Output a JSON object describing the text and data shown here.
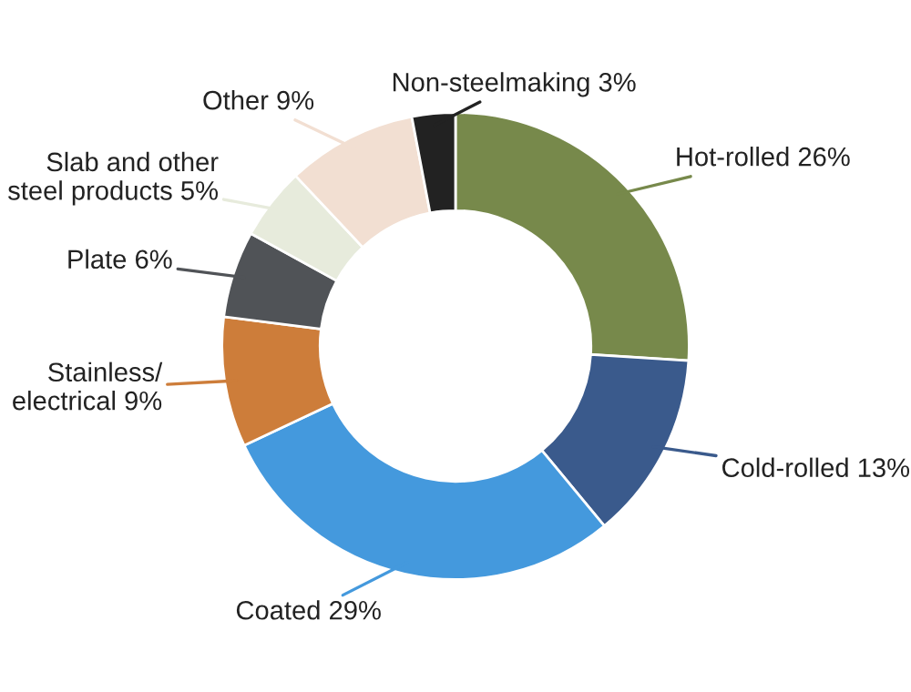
{
  "chart_data": {
    "type": "donut",
    "categories": [
      "Hot-rolled",
      "Cold-rolled",
      "Coated",
      "Stainless/\nelectrical",
      "Plate",
      "Slab and other\nsteel products",
      "Other",
      "Non-steelmaking"
    ],
    "values": [
      26,
      13,
      29,
      9,
      6,
      5,
      9,
      3
    ],
    "value_labels": [
      "26%",
      "13%",
      "29%",
      "9%",
      "6%",
      "5%",
      "9%",
      "3%"
    ],
    "colors": [
      "#77894b",
      "#3a5a8c",
      "#4499dd",
      "#cd7d3a",
      "#505357",
      "#e7ebdc",
      "#f2dfd2",
      "#222222"
    ],
    "legend": false
  }
}
